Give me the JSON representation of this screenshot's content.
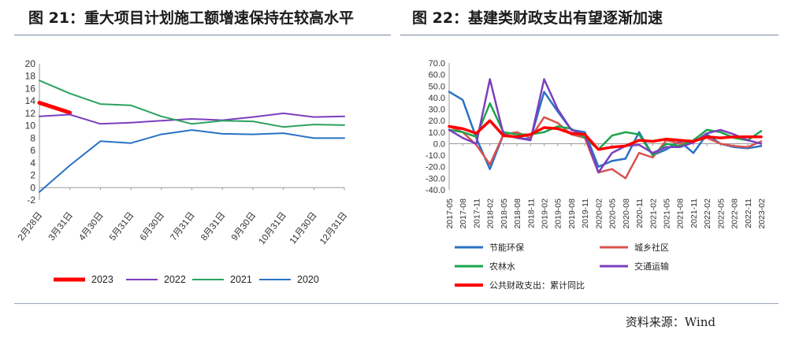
{
  "titles": {
    "left": "图 21：重大项目计划施工额增速保持在较高水平",
    "right": "图 22：基建类财政支出有望逐渐加速"
  },
  "source": "资料来源：Wind",
  "chart_data": [
    {
      "type": "line",
      "categories": [
        "2月28日",
        "3月31日",
        "4月30日",
        "5月31日",
        "6月30日",
        "7月31日",
        "8月31日",
        "9月30日",
        "10月31日",
        "11月30日",
        "12月31日"
      ],
      "ylim": [
        -2,
        20
      ],
      "yticks": [
        -2,
        0,
        2,
        4,
        6,
        8,
        10,
        12,
        14,
        16,
        18,
        20
      ],
      "legend_position": "bottom",
      "series": [
        {
          "name": "2023",
          "color": "#ff0000",
          "values": [
            13.7,
            12.1,
            null,
            null,
            null,
            null,
            null,
            null,
            null,
            null,
            null
          ]
        },
        {
          "name": "2022",
          "color": "#7b3fbf",
          "values": [
            11.5,
            11.8,
            10.3,
            10.5,
            10.8,
            11.1,
            10.9,
            11.4,
            12.0,
            11.4,
            11.5
          ]
        },
        {
          "name": "2021",
          "color": "#2ca25f",
          "values": [
            17.3,
            15.2,
            13.5,
            13.3,
            11.5,
            10.3,
            10.8,
            10.7,
            9.8,
            10.2,
            10.1
          ]
        },
        {
          "name": "2020",
          "color": "#2a72c4",
          "values": [
            -0.7,
            3.6,
            7.5,
            7.2,
            8.6,
            9.3,
            8.7,
            8.6,
            8.8,
            8.0,
            8.0
          ]
        }
      ]
    },
    {
      "type": "line",
      "categories": [
        "2017-05",
        "2017-08",
        "2017-11",
        "2018-02",
        "2018-05",
        "2018-08",
        "2018-11",
        "2019-02",
        "2019-05",
        "2019-08",
        "2019-11",
        "2020-02",
        "2020-05",
        "2020-08",
        "2020-11",
        "2021-02",
        "2021-05",
        "2021-08",
        "2021-11",
        "2022-02",
        "2022-05",
        "2022-08",
        "2022-11",
        "2023-02"
      ],
      "ylim": [
        -40,
        70
      ],
      "yticks": [
        -40,
        -30,
        -20,
        -10,
        0,
        10,
        20,
        30,
        40,
        50,
        60,
        70
      ],
      "legend_position": "bottom",
      "series": [
        {
          "name": "节能环保",
          "color": "#2a72c4",
          "values": [
            45,
            38,
            5,
            -22,
            8,
            5,
            4,
            45,
            28,
            12,
            10,
            -20,
            -15,
            -13,
            10,
            -10,
            -5,
            2,
            -8,
            8,
            0,
            -3,
            -4,
            -2
          ]
        },
        {
          "name": "城乡社区",
          "color": "#d9534f",
          "values": [
            15,
            10,
            -1,
            -18,
            8,
            10,
            5,
            23,
            18,
            8,
            5,
            -25,
            -22,
            -30,
            -8,
            -12,
            3,
            0,
            2,
            5,
            0,
            -2,
            -3,
            2
          ]
        },
        {
          "name": "农林水",
          "color": "#19a64a",
          "values": [
            12,
            10,
            6,
            35,
            10,
            8,
            8,
            10,
            15,
            13,
            5,
            -5,
            7,
            10,
            8,
            -10,
            0,
            -2,
            3,
            12,
            10,
            5,
            3,
            11
          ]
        },
        {
          "name": "交通运输",
          "color": "#7b3fbf",
          "values": [
            12,
            5,
            0,
            56,
            8,
            5,
            3,
            56,
            30,
            12,
            8,
            -25,
            -8,
            -2,
            -1,
            -8,
            -3,
            -3,
            1,
            9,
            12,
            8,
            3,
            0
          ]
        },
        {
          "name": "公共财政支出：累计同比",
          "color": "#ff0000",
          "values": [
            15,
            13,
            9,
            20,
            7,
            6,
            8,
            14,
            13,
            9,
            8,
            -5,
            -3,
            -2,
            3,
            2,
            4,
            3,
            2,
            6,
            5,
            6,
            6,
            6
          ]
        }
      ]
    }
  ]
}
